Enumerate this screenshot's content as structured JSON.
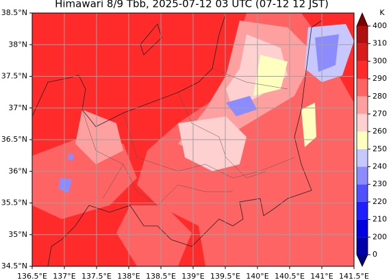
{
  "title": "Himawari 8/9 Tbb, 2025-07-12 03 UTC (07-12 12 JST)",
  "map": {
    "xlim": [
      136.5,
      141.5
    ],
    "ylim": [
      34.5,
      38.5
    ],
    "xticks": [
      {
        "value": 136.5,
        "label": "136.5°E"
      },
      {
        "value": 137,
        "label": "137°E"
      },
      {
        "value": 137.5,
        "label": "137.5°E"
      },
      {
        "value": 138,
        "label": "138°E"
      },
      {
        "value": 138.5,
        "label": "138.5°E"
      },
      {
        "value": 139,
        "label": "139°E"
      },
      {
        "value": 139.5,
        "label": "139.5°E"
      },
      {
        "value": 140,
        "label": "140°E"
      },
      {
        "value": 140.5,
        "label": "140.5°E"
      },
      {
        "value": 141,
        "label": "141°E"
      },
      {
        "value": 141.5,
        "label": "141.5°E"
      }
    ],
    "yticks": [
      {
        "value": 34.5,
        "label": "34.5°N"
      },
      {
        "value": 35,
        "label": "35°N"
      },
      {
        "value": 35.5,
        "label": "35.5°N"
      },
      {
        "value": 36,
        "label": "36°N"
      },
      {
        "value": 36.5,
        "label": "36.5°N"
      },
      {
        "value": 37,
        "label": "37°N"
      },
      {
        "value": 37.5,
        "label": "37.5°N"
      },
      {
        "value": 38,
        "label": "38°N"
      },
      {
        "value": 38.5,
        "label": "38.5°N"
      }
    ],
    "grid": true
  },
  "colorbar": {
    "unit": "K",
    "ticks": [
      0,
      200,
      210,
      220,
      230,
      240,
      250,
      260,
      270,
      280,
      290,
      300,
      310,
      400
    ],
    "colors": [
      "#0000a8",
      "#0000e0",
      "#1e1eff",
      "#5050ff",
      "#8c8cff",
      "#c8c8ff",
      "#ffffc0",
      "#ffd0d0",
      "#ffa0a0",
      "#ff6464",
      "#ff2a2a",
      "#d81c1c",
      "#b01010"
    ],
    "under_color": "#000080",
    "over_color": "#800000"
  }
}
